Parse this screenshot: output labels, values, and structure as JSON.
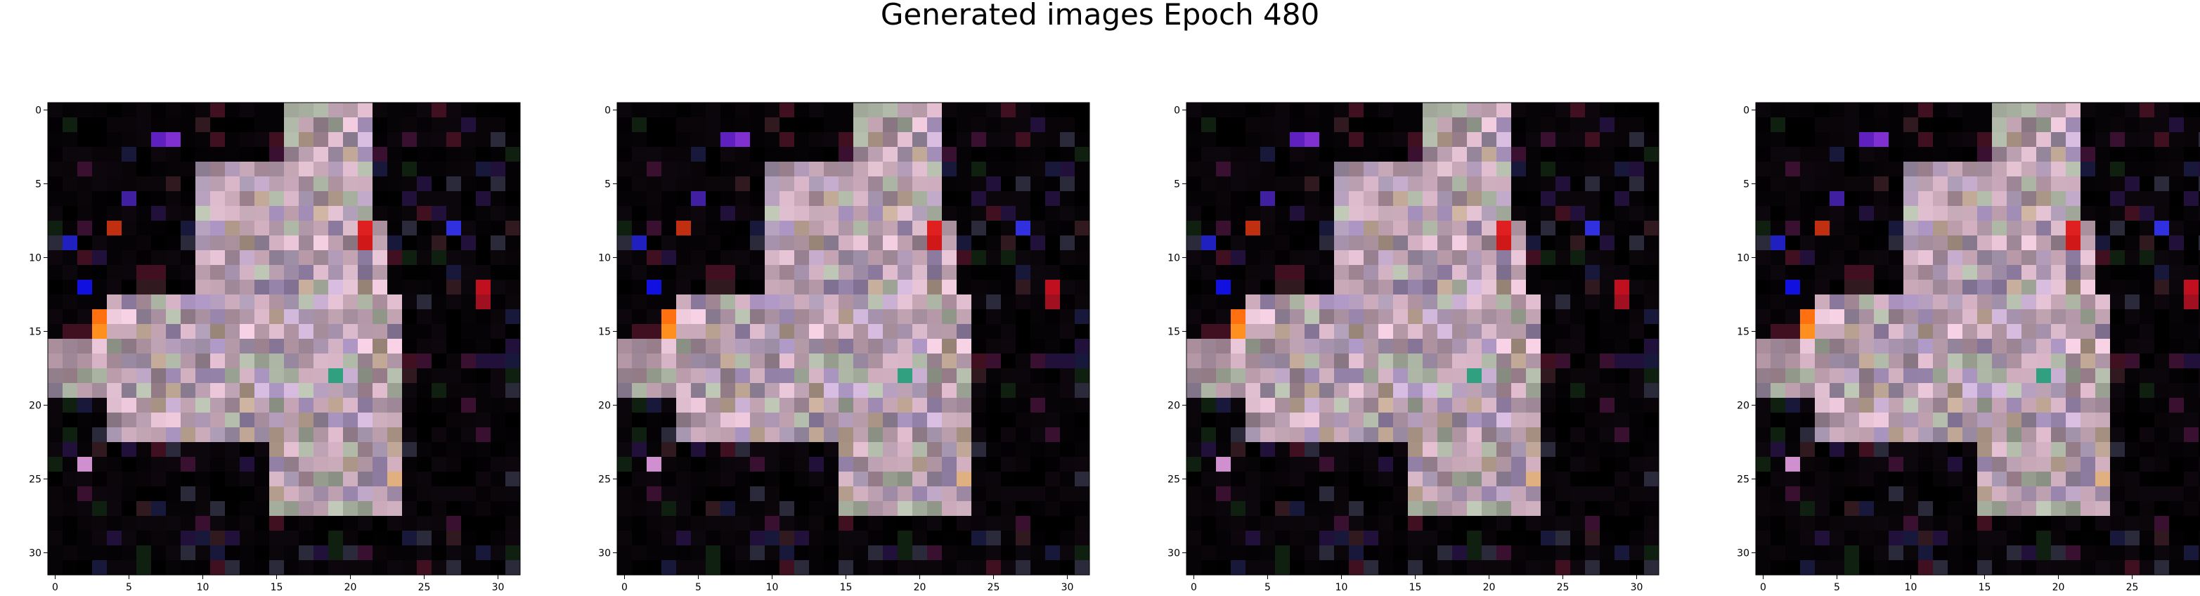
{
  "title": "Generated images Epoch 480",
  "chart_data": {
    "type": "heatmap",
    "title": "Generated images Epoch 480",
    "image_size": 32,
    "xlim": [
      -0.5,
      31.5
    ],
    "ylim": [
      31.5,
      -0.5
    ],
    "x_ticks": [
      0,
      5,
      10,
      15,
      20,
      25,
      30
    ],
    "y_ticks": [
      0,
      5,
      10,
      15,
      20,
      25,
      30
    ],
    "panel_count": 4,
    "panels": [
      {
        "name": "image-1"
      },
      {
        "name": "image-2"
      },
      {
        "name": "image-3"
      },
      {
        "name": "image-4"
      }
    ],
    "background_color": "#000000",
    "palette": [
      "#b89aa8",
      "#c8a8b8",
      "#a890a0",
      "#d0b0c0",
      "#9e8ea6",
      "#b8a090",
      "#c0a8c8",
      "#a8b0a0",
      "#d8b8c8",
      "#9c88b0"
    ],
    "accent_pixels": [
      {
        "x": 2,
        "y": 12,
        "color": "#1010e0"
      },
      {
        "x": 3,
        "y": 14,
        "color": "#ff7010"
      },
      {
        "x": 3,
        "y": 15,
        "color": "#ff9020"
      },
      {
        "x": 21,
        "y": 8,
        "color": "#e02020"
      },
      {
        "x": 21,
        "y": 9,
        "color": "#d01818"
      },
      {
        "x": 27,
        "y": 8,
        "color": "#3030e0"
      },
      {
        "x": 29,
        "y": 12,
        "color": "#c01020"
      },
      {
        "x": 29,
        "y": 13,
        "color": "#a01020"
      },
      {
        "x": 1,
        "y": 9,
        "color": "#2020c0"
      },
      {
        "x": 4,
        "y": 8,
        "color": "#c03010"
      },
      {
        "x": 7,
        "y": 2,
        "color": "#6020c0"
      },
      {
        "x": 8,
        "y": 2,
        "color": "#8030d0"
      },
      {
        "x": 5,
        "y": 6,
        "color": "#4020a0"
      },
      {
        "x": 19,
        "y": 18,
        "color": "#30a080"
      },
      {
        "x": 2,
        "y": 24,
        "color": "#d090d0"
      },
      {
        "x": 23,
        "y": 25,
        "color": "#e0b080"
      }
    ]
  }
}
